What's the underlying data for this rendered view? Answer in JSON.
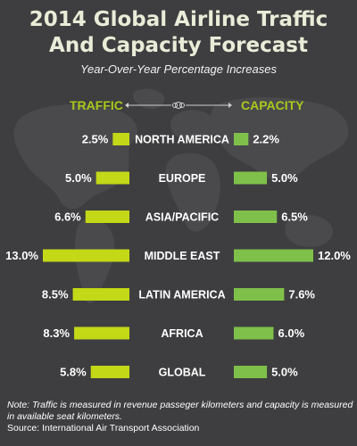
{
  "title_line1": "2014 Global Airline Traffic",
  "title_line2": "And Capacity Forecast",
  "subtitle": "Year-Over-Year Percentage Increases",
  "note": "Note: Traffic is measured in revenue passeger kilometers and capacity is measured in available seat kilometers.",
  "source": "Source: International Air Transport Association",
  "colors": {
    "accent": "#a8c91c",
    "traffic_bar": "#c3d817",
    "capacity_bar": "#7fc04a",
    "background": "#3e3e40",
    "map": "#4a4a4d"
  },
  "chart_data": {
    "type": "bar",
    "categories": [
      "NORTH AMERICA",
      "EUROPE",
      "ASIA/PACIFIC",
      "MIDDLE EAST",
      "LATIN AMERICA",
      "AFRICA",
      "GLOBAL"
    ],
    "series": [
      {
        "name": "TRAFFIC",
        "values": [
          2.5,
          5.0,
          6.6,
          13.0,
          8.5,
          8.3,
          5.8
        ],
        "labels": [
          "2.5%",
          "5.0%",
          "6.6%",
          "13.0%",
          "8.5%",
          "8.3%",
          "5.8%"
        ]
      },
      {
        "name": "CAPACITY",
        "values": [
          2.2,
          5.0,
          6.5,
          12.0,
          7.6,
          6.0,
          5.0
        ],
        "labels": [
          "2.2%",
          "5.0%",
          "6.5%",
          "12.0%",
          "7.6%",
          "6.0%",
          "5.0%"
        ]
      }
    ],
    "title": "2014 Global Airline Traffic And Capacity Forecast",
    "subtitle": "Year-Over-Year Percentage Increases",
    "ylim": [
      0,
      13
    ],
    "grid": false,
    "legend": "top"
  }
}
